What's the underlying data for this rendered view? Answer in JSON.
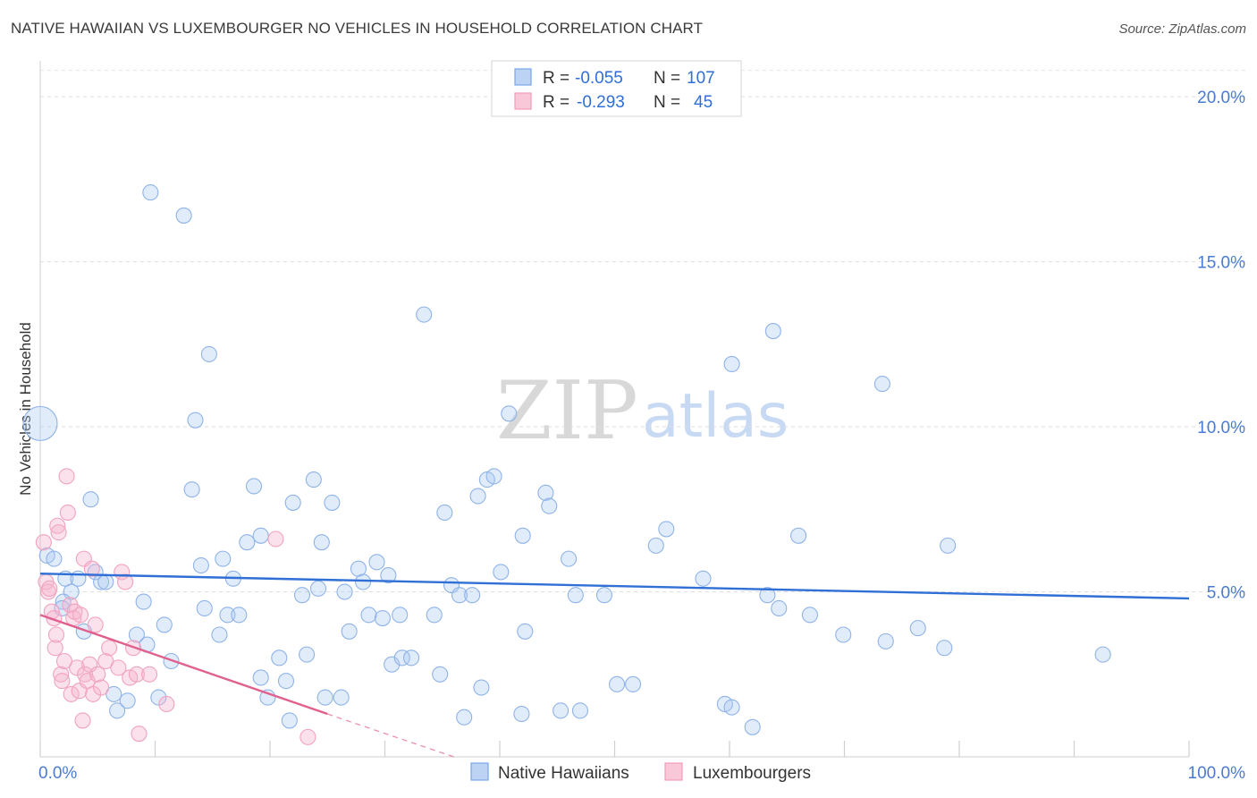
{
  "title": "NATIVE HAWAIIAN VS LUXEMBOURGER NO VEHICLES IN HOUSEHOLD CORRELATION CHART",
  "source": "Source: ZipAtlas.com",
  "colors": {
    "blue": "#7aa7e8",
    "blue_line": "#2f6fd6",
    "pink": "#f29bb8",
    "pink_line": "#e0608e",
    "axis_text": "#4a7bd0"
  },
  "chart_data": {
    "type": "scatter",
    "xlabel": "",
    "ylabel": "No Vehicles in Household",
    "xlim": [
      0,
      100
    ],
    "ylim": [
      0,
      20.8
    ],
    "x_tick_labels": [
      {
        "value": 0,
        "label": "0.0%"
      },
      {
        "value": 100,
        "label": "100.0%"
      }
    ],
    "y_ticks": [
      {
        "value": 5,
        "label": "5.0%"
      },
      {
        "value": 10,
        "label": "10.0%"
      },
      {
        "value": 15,
        "label": "15.0%"
      },
      {
        "value": 20,
        "label": "20.0%"
      }
    ],
    "legend": [
      {
        "name": "Native Hawaiians",
        "r_label": "R =",
        "r": "-0.055",
        "n_label": "N =",
        "n": "107"
      },
      {
        "name": "Luxembourgers",
        "r_label": "R =",
        "r": "-0.293",
        "n_label": "N =",
        "n": "45"
      }
    ],
    "watermark": {
      "zip": "ZIP",
      "atlas": "atlas"
    },
    "series": [
      {
        "name": "Native Hawaiians",
        "trend": {
          "x0": 0,
          "y0": 5.55,
          "x1": 100,
          "y1": 4.8
        },
        "points": [
          [
            0.0,
            10.1,
            1
          ],
          [
            0.6,
            6.1,
            0
          ],
          [
            1.2,
            6.0,
            0
          ],
          [
            2.2,
            5.4,
            0
          ],
          [
            3.3,
            5.4,
            0
          ],
          [
            4.4,
            7.8,
            0
          ],
          [
            4.8,
            5.6,
            0
          ],
          [
            5.3,
            5.3,
            0
          ],
          [
            5.7,
            5.3,
            0
          ],
          [
            2.7,
            5.0,
            0
          ],
          [
            2.0,
            4.7,
            0
          ],
          [
            1.9,
            4.5,
            0
          ],
          [
            3.8,
            3.8,
            0
          ],
          [
            6.4,
            1.9,
            0
          ],
          [
            6.7,
            1.4,
            0
          ],
          [
            7.6,
            1.7,
            0
          ],
          [
            8.4,
            3.7,
            0
          ],
          [
            9.0,
            4.7,
            0
          ],
          [
            9.3,
            3.4,
            0
          ],
          [
            10.3,
            1.8,
            0
          ],
          [
            10.8,
            4.0,
            0
          ],
          [
            11.4,
            2.9,
            0
          ],
          [
            9.6,
            17.1,
            0
          ],
          [
            12.5,
            16.4,
            0
          ],
          [
            14.7,
            12.2,
            0
          ],
          [
            13.2,
            8.1,
            0
          ],
          [
            13.5,
            10.2,
            0
          ],
          [
            14.0,
            5.8,
            0
          ],
          [
            14.3,
            4.5,
            0
          ],
          [
            15.6,
            3.7,
            0
          ],
          [
            15.9,
            6.0,
            0
          ],
          [
            16.3,
            4.3,
            0
          ],
          [
            16.8,
            5.4,
            0
          ],
          [
            17.3,
            4.3,
            0
          ],
          [
            18.0,
            6.5,
            0
          ],
          [
            18.6,
            8.2,
            0
          ],
          [
            19.2,
            6.7,
            0
          ],
          [
            19.2,
            2.4,
            0
          ],
          [
            19.8,
            1.8,
            0
          ],
          [
            20.8,
            3.0,
            0
          ],
          [
            21.4,
            2.3,
            0
          ],
          [
            21.7,
            1.1,
            0
          ],
          [
            22.0,
            7.7,
            0
          ],
          [
            22.8,
            4.9,
            0
          ],
          [
            23.2,
            3.1,
            0
          ],
          [
            23.8,
            8.4,
            0
          ],
          [
            24.2,
            5.1,
            0
          ],
          [
            24.5,
            6.5,
            0
          ],
          [
            24.8,
            1.8,
            0
          ],
          [
            25.4,
            7.7,
            0
          ],
          [
            26.2,
            1.8,
            0
          ],
          [
            26.5,
            5.0,
            0
          ],
          [
            26.9,
            3.8,
            0
          ],
          [
            27.7,
            5.7,
            0
          ],
          [
            28.1,
            5.3,
            0
          ],
          [
            28.6,
            4.3,
            0
          ],
          [
            29.3,
            5.9,
            0
          ],
          [
            29.8,
            4.2,
            0
          ],
          [
            30.3,
            5.5,
            0
          ],
          [
            30.6,
            2.8,
            0
          ],
          [
            31.3,
            4.3,
            0
          ],
          [
            31.5,
            3.0,
            0
          ],
          [
            32.3,
            3.0,
            0
          ],
          [
            33.4,
            13.4,
            0
          ],
          [
            34.3,
            4.3,
            0
          ],
          [
            34.8,
            2.5,
            0
          ],
          [
            35.2,
            7.4,
            0
          ],
          [
            35.8,
            5.2,
            0
          ],
          [
            36.5,
            4.9,
            0
          ],
          [
            36.9,
            1.2,
            0
          ],
          [
            37.6,
            4.9,
            0
          ],
          [
            38.1,
            7.9,
            0
          ],
          [
            38.4,
            2.1,
            0
          ],
          [
            38.9,
            8.4,
            0
          ],
          [
            39.5,
            8.5,
            0
          ],
          [
            40.1,
            5.6,
            0
          ],
          [
            40.8,
            10.4,
            0
          ],
          [
            41.9,
            1.3,
            0
          ],
          [
            42.0,
            6.7,
            0
          ],
          [
            42.2,
            3.8,
            0
          ],
          [
            44.0,
            8.0,
            0
          ],
          [
            44.3,
            7.6,
            0
          ],
          [
            45.3,
            1.4,
            0
          ],
          [
            46.0,
            6.0,
            0
          ],
          [
            46.6,
            4.9,
            0
          ],
          [
            47.0,
            1.4,
            0
          ],
          [
            49.1,
            4.9,
            0
          ],
          [
            50.2,
            2.2,
            0
          ],
          [
            51.6,
            2.2,
            0
          ],
          [
            53.6,
            6.4,
            0
          ],
          [
            54.5,
            6.9,
            0
          ],
          [
            57.7,
            5.4,
            0
          ],
          [
            59.6,
            1.6,
            0
          ],
          [
            60.2,
            1.5,
            0
          ],
          [
            60.2,
            11.9,
            0
          ],
          [
            62.0,
            0.9,
            0
          ],
          [
            63.3,
            4.9,
            0
          ],
          [
            63.8,
            12.9,
            0
          ],
          [
            64.3,
            4.5,
            0
          ],
          [
            66.0,
            6.7,
            0
          ],
          [
            67.0,
            4.3,
            0
          ],
          [
            69.9,
            3.7,
            0
          ],
          [
            73.3,
            11.3,
            0
          ],
          [
            73.6,
            3.5,
            0
          ],
          [
            76.4,
            3.9,
            0
          ],
          [
            78.7,
            3.3,
            0
          ],
          [
            79.0,
            6.4,
            0
          ],
          [
            92.5,
            3.1,
            0
          ]
        ]
      },
      {
        "name": "Luxembourgers",
        "trend": {
          "x0": 0,
          "y0": 4.3,
          "x1": 25,
          "y1": 1.3
        },
        "trend_dashed": {
          "x0": 25,
          "y0": 1.3,
          "x1": 36,
          "y1": 0.0
        },
        "points": [
          [
            0.3,
            6.5
          ],
          [
            0.5,
            5.3
          ],
          [
            0.7,
            5.0
          ],
          [
            0.8,
            5.1
          ],
          [
            1.0,
            4.4
          ],
          [
            1.2,
            4.2
          ],
          [
            1.3,
            3.3
          ],
          [
            1.4,
            3.7
          ],
          [
            1.5,
            7.0
          ],
          [
            1.6,
            6.8
          ],
          [
            1.8,
            2.5
          ],
          [
            1.9,
            2.3
          ],
          [
            2.1,
            2.9
          ],
          [
            2.3,
            8.5
          ],
          [
            2.4,
            7.4
          ],
          [
            2.6,
            4.6
          ],
          [
            2.7,
            1.9
          ],
          [
            2.9,
            4.2
          ],
          [
            3.0,
            4.4
          ],
          [
            3.2,
            2.7
          ],
          [
            3.4,
            2.0
          ],
          [
            3.5,
            4.3
          ],
          [
            3.7,
            1.1
          ],
          [
            3.8,
            6.0
          ],
          [
            3.9,
            2.5
          ],
          [
            4.1,
            2.3
          ],
          [
            4.3,
            2.8
          ],
          [
            4.5,
            5.7
          ],
          [
            4.6,
            1.9
          ],
          [
            4.8,
            4.0
          ],
          [
            5.0,
            2.5
          ],
          [
            5.3,
            2.1
          ],
          [
            5.7,
            2.9
          ],
          [
            6.0,
            3.3
          ],
          [
            6.8,
            2.7
          ],
          [
            7.1,
            5.6
          ],
          [
            7.4,
            5.3
          ],
          [
            7.8,
            2.4
          ],
          [
            8.1,
            3.3
          ],
          [
            8.4,
            2.5
          ],
          [
            8.6,
            0.7
          ],
          [
            9.5,
            2.5
          ],
          [
            11.0,
            1.6
          ],
          [
            20.5,
            6.6
          ],
          [
            23.3,
            0.6
          ]
        ]
      }
    ]
  }
}
